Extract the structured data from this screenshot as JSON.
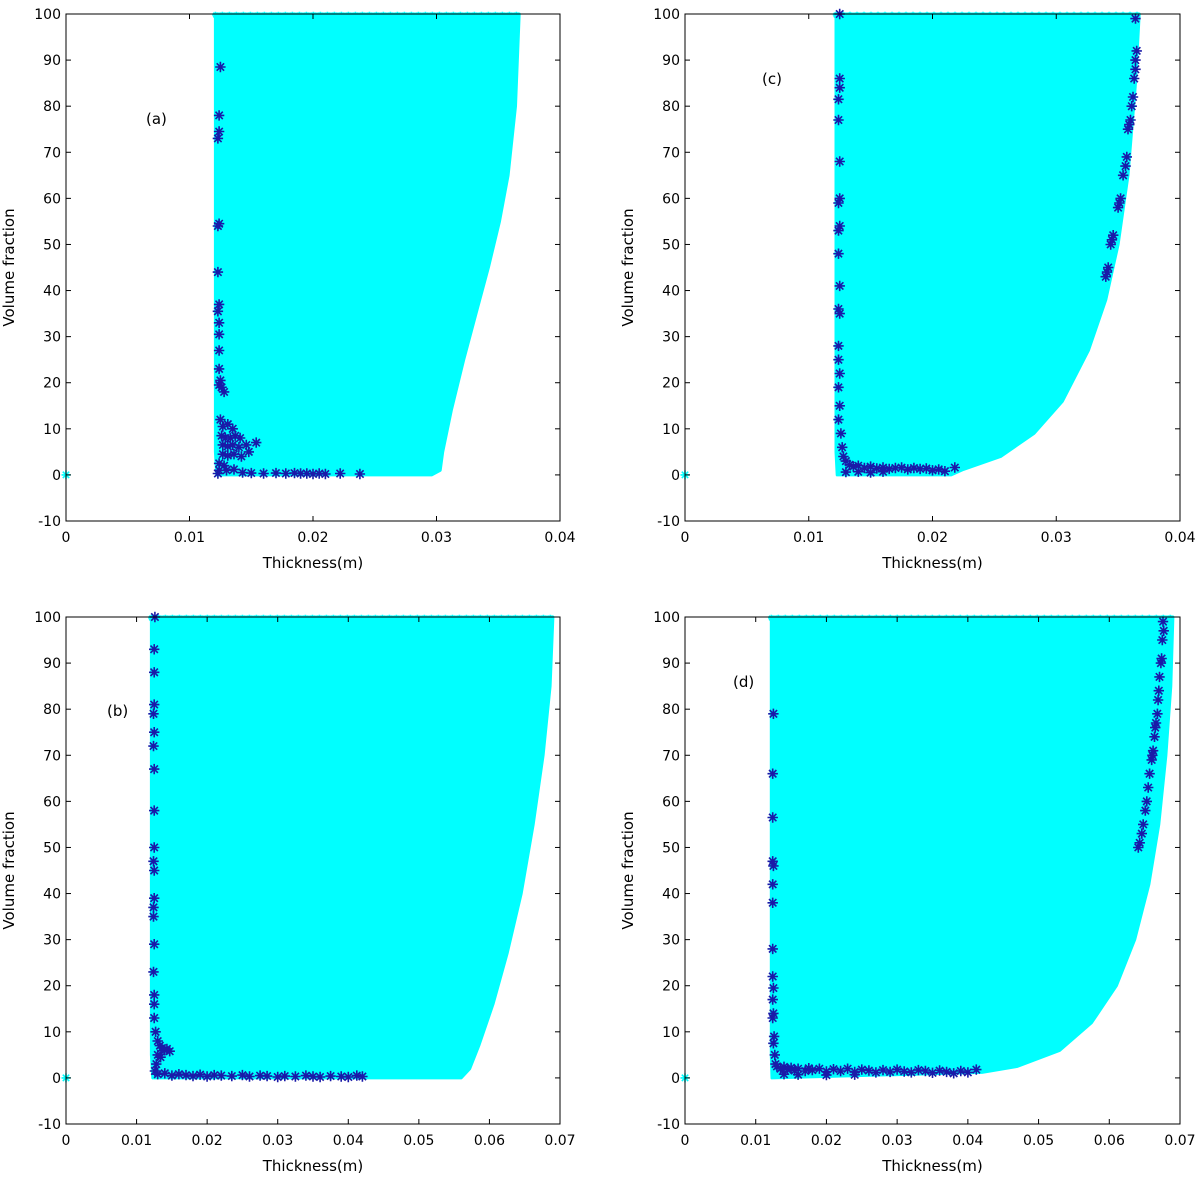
{
  "colors": {
    "region_fill": "#00ffff",
    "pareto_marker": "#1a1aa8",
    "axes": "#000000",
    "background": "#ffffff"
  },
  "chart_data": [
    {
      "panel": "(a)",
      "type": "scatter",
      "xlabel": "Thickness(m)",
      "ylabel": "Volume fraction",
      "xlim": [
        0,
        0.04
      ],
      "ylim": [
        -10,
        100
      ],
      "xticks": [
        0,
        0.01,
        0.02,
        0.03,
        0.04
      ],
      "xtick_labels": [
        "0",
        "0.01",
        "0.02",
        "0.03",
        "0.04"
      ],
      "yticks": [
        -10,
        0,
        10,
        20,
        30,
        40,
        50,
        60,
        70,
        80,
        90,
        100
      ],
      "grid": false,
      "region_boundary": [
        [
          0.0121,
          100
        ],
        [
          0.0367,
          100
        ],
        [
          0.0364,
          80
        ],
        [
          0.0358,
          65
        ],
        [
          0.0351,
          55
        ],
        [
          0.0342,
          45
        ],
        [
          0.0332,
          35
        ],
        [
          0.0322,
          25
        ],
        [
          0.0312,
          14
        ],
        [
          0.0305,
          5
        ],
        [
          0.0303,
          1
        ],
        [
          0.0296,
          0
        ],
        [
          0.0122,
          0
        ],
        [
          0.0121,
          5
        ]
      ],
      "region_points": [
        [
          0.0,
          0.0
        ]
      ],
      "pareto_points": [
        [
          0.0125,
          88.5
        ],
        [
          0.0124,
          78
        ],
        [
          0.0124,
          74.5
        ],
        [
          0.0123,
          73
        ],
        [
          0.0124,
          54.5
        ],
        [
          0.0123,
          54
        ],
        [
          0.0123,
          44
        ],
        [
          0.0124,
          37
        ],
        [
          0.0123,
          35.5
        ],
        [
          0.0124,
          33
        ],
        [
          0.0124,
          30.5
        ],
        [
          0.0124,
          27
        ],
        [
          0.0124,
          23
        ],
        [
          0.0125,
          20.5
        ],
        [
          0.0124,
          19.5
        ],
        [
          0.0126,
          19
        ],
        [
          0.0128,
          18
        ],
        [
          0.0125,
          12
        ],
        [
          0.0127,
          10.5
        ],
        [
          0.0131,
          11
        ],
        [
          0.0135,
          10
        ],
        [
          0.0126,
          8.5
        ],
        [
          0.0129,
          8
        ],
        [
          0.0133,
          8
        ],
        [
          0.0137,
          8.5
        ],
        [
          0.0141,
          8
        ],
        [
          0.0127,
          6.5
        ],
        [
          0.0131,
          6.2
        ],
        [
          0.0135,
          6.5
        ],
        [
          0.014,
          6
        ],
        [
          0.0146,
          6.5
        ],
        [
          0.0154,
          7
        ],
        [
          0.0127,
          4.5
        ],
        [
          0.0131,
          4.2
        ],
        [
          0.0136,
          4.5
        ],
        [
          0.0142,
          4
        ],
        [
          0.0148,
          5
        ],
        [
          0.0124,
          2.5
        ],
        [
          0.0128,
          2
        ],
        [
          0.0124,
          1
        ],
        [
          0.013,
          1
        ],
        [
          0.0136,
          1.2
        ],
        [
          0.0123,
          0.3
        ],
        [
          0.0143,
          0.5
        ],
        [
          0.015,
          0.4
        ],
        [
          0.016,
          0.3
        ],
        [
          0.017,
          0.4
        ],
        [
          0.0178,
          0.3
        ],
        [
          0.0185,
          0.4
        ],
        [
          0.019,
          0.3
        ],
        [
          0.0195,
          0.3
        ],
        [
          0.02,
          0.2
        ],
        [
          0.0205,
          0.3
        ],
        [
          0.021,
          0.2
        ],
        [
          0.0222,
          0.3
        ],
        [
          0.0238,
          0.2
        ]
      ]
    },
    {
      "panel": "(c)",
      "type": "scatter",
      "xlabel": "Thickness(m)",
      "ylabel": "Volume fraction",
      "xlim": [
        0,
        0.04
      ],
      "ylim": [
        -10,
        100
      ],
      "xticks": [
        0,
        0.01,
        0.02,
        0.03,
        0.04
      ],
      "xtick_labels": [
        "0",
        "0.01",
        "0.02",
        "0.03",
        "0.04"
      ],
      "yticks": [
        -10,
        0,
        10,
        20,
        30,
        40,
        50,
        60,
        70,
        80,
        90,
        100
      ],
      "grid": false,
      "region_boundary": [
        [
          0.0122,
          100
        ],
        [
          0.0367,
          100
        ],
        [
          0.0364,
          85
        ],
        [
          0.0358,
          65
        ],
        [
          0.035,
          50
        ],
        [
          0.034,
          38
        ],
        [
          0.0326,
          27
        ],
        [
          0.0305,
          16
        ],
        [
          0.0282,
          9
        ],
        [
          0.0255,
          4
        ],
        [
          0.0225,
          1.2
        ],
        [
          0.0215,
          0
        ],
        [
          0.0123,
          0
        ],
        [
          0.0122,
          5
        ]
      ],
      "region_points": [
        [
          0.0,
          0.0
        ]
      ],
      "pareto_points": [
        [
          0.0125,
          100
        ],
        [
          0.0125,
          86
        ],
        [
          0.0125,
          84
        ],
        [
          0.0124,
          81.5
        ],
        [
          0.0124,
          77
        ],
        [
          0.0125,
          68
        ],
        [
          0.0125,
          60
        ],
        [
          0.0124,
          59
        ],
        [
          0.0125,
          54
        ],
        [
          0.0124,
          53
        ],
        [
          0.0124,
          48
        ],
        [
          0.0125,
          41
        ],
        [
          0.0124,
          36
        ],
        [
          0.0125,
          35
        ],
        [
          0.0124,
          28
        ],
        [
          0.0124,
          25
        ],
        [
          0.0125,
          22
        ],
        [
          0.0124,
          19
        ],
        [
          0.0125,
          15
        ],
        [
          0.0124,
          12
        ],
        [
          0.0126,
          9
        ],
        [
          0.0127,
          6
        ],
        [
          0.0128,
          4
        ],
        [
          0.013,
          3
        ],
        [
          0.0133,
          2.2
        ],
        [
          0.0136,
          1.8
        ],
        [
          0.014,
          2
        ],
        [
          0.0145,
          1.5
        ],
        [
          0.015,
          1.8
        ],
        [
          0.0155,
          1.4
        ],
        [
          0.016,
          1.6
        ],
        [
          0.0165,
          1.3
        ],
        [
          0.017,
          1.5
        ],
        [
          0.0175,
          1.6
        ],
        [
          0.018,
          1.2
        ],
        [
          0.0185,
          1.5
        ],
        [
          0.019,
          1.3
        ],
        [
          0.0195,
          1.4
        ],
        [
          0.02,
          1.0
        ],
        [
          0.0205,
          1.2
        ],
        [
          0.021,
          0.8
        ],
        [
          0.0218,
          1.6
        ],
        [
          0.013,
          0.6
        ],
        [
          0.014,
          0.7
        ],
        [
          0.015,
          0.5
        ],
        [
          0.016,
          0.7
        ],
        [
          0.0364,
          99
        ],
        [
          0.0365,
          92
        ],
        [
          0.0364,
          90
        ],
        [
          0.0364,
          88
        ],
        [
          0.0363,
          86
        ],
        [
          0.0362,
          82
        ],
        [
          0.0361,
          80
        ],
        [
          0.036,
          77
        ],
        [
          0.0359,
          76
        ],
        [
          0.0358,
          75
        ],
        [
          0.0357,
          69
        ],
        [
          0.0356,
          67
        ],
        [
          0.0354,
          65
        ],
        [
          0.0352,
          60
        ],
        [
          0.0351,
          59
        ],
        [
          0.035,
          58
        ],
        [
          0.0346,
          52
        ],
        [
          0.0345,
          51
        ],
        [
          0.0344,
          50
        ],
        [
          0.0342,
          45
        ],
        [
          0.0341,
          44
        ],
        [
          0.034,
          43
        ]
      ]
    },
    {
      "panel": "(b)",
      "type": "scatter",
      "xlabel": "Thickness(m)",
      "ylabel": "Volume fraction",
      "xlim": [
        0,
        0.07
      ],
      "ylim": [
        -10,
        100
      ],
      "xticks": [
        0,
        0.01,
        0.02,
        0.03,
        0.04,
        0.05,
        0.06,
        0.07
      ],
      "xtick_labels": [
        "0",
        "0.01",
        "0.02",
        "0.03",
        "0.04",
        "0.05",
        "0.06",
        "0.07"
      ],
      "yticks": [
        -10,
        0,
        10,
        20,
        30,
        40,
        50,
        60,
        70,
        80,
        90,
        100
      ],
      "grid": false,
      "region_boundary": [
        [
          0.0121,
          100
        ],
        [
          0.069,
          100
        ],
        [
          0.0686,
          85
        ],
        [
          0.0676,
          70
        ],
        [
          0.0662,
          55
        ],
        [
          0.0645,
          40
        ],
        [
          0.0625,
          27
        ],
        [
          0.0605,
          16
        ],
        [
          0.0585,
          7
        ],
        [
          0.0572,
          2
        ],
        [
          0.056,
          0
        ],
        [
          0.0123,
          0
        ],
        [
          0.0121,
          5
        ]
      ],
      "region_points": [
        [
          0.0,
          0.0
        ]
      ],
      "pareto_points": [
        [
          0.0126,
          100
        ],
        [
          0.0125,
          93
        ],
        [
          0.0125,
          88
        ],
        [
          0.0125,
          81
        ],
        [
          0.0124,
          79
        ],
        [
          0.0125,
          75
        ],
        [
          0.0124,
          72
        ],
        [
          0.0125,
          67
        ],
        [
          0.0125,
          58
        ],
        [
          0.0125,
          50
        ],
        [
          0.0124,
          47
        ],
        [
          0.0125,
          45
        ],
        [
          0.0125,
          39
        ],
        [
          0.0124,
          37
        ],
        [
          0.0124,
          35
        ],
        [
          0.0125,
          29
        ],
        [
          0.0124,
          23
        ],
        [
          0.0125,
          18
        ],
        [
          0.0125,
          16
        ],
        [
          0.0125,
          13
        ],
        [
          0.0127,
          10
        ],
        [
          0.013,
          8
        ],
        [
          0.0133,
          7
        ],
        [
          0.0136,
          6.5
        ],
        [
          0.014,
          6
        ],
        [
          0.0143,
          6.3
        ],
        [
          0.0147,
          5.8
        ],
        [
          0.013,
          5
        ],
        [
          0.0134,
          4.5
        ],
        [
          0.0128,
          3
        ],
        [
          0.0126,
          1.5
        ],
        [
          0.013,
          0.8
        ],
        [
          0.014,
          1
        ],
        [
          0.015,
          0.5
        ],
        [
          0.016,
          0.8
        ],
        [
          0.017,
          0.6
        ],
        [
          0.018,
          0.4
        ],
        [
          0.019,
          0.7
        ],
        [
          0.02,
          0.3
        ],
        [
          0.021,
          0.6
        ],
        [
          0.022,
          0.5
        ],
        [
          0.0235,
          0.4
        ],
        [
          0.025,
          0.6
        ],
        [
          0.026,
          0.3
        ],
        [
          0.0275,
          0.5
        ],
        [
          0.0285,
          0.4
        ],
        [
          0.03,
          0.2
        ],
        [
          0.031,
          0.4
        ],
        [
          0.0325,
          0.3
        ],
        [
          0.034,
          0.5
        ],
        [
          0.035,
          0.3
        ],
        [
          0.036,
          0.2
        ],
        [
          0.0375,
          0.4
        ],
        [
          0.039,
          0.3
        ],
        [
          0.04,
          0.2
        ],
        [
          0.0412,
          0.5
        ],
        [
          0.042,
          0.3
        ]
      ]
    },
    {
      "panel": "(d)",
      "type": "scatter",
      "xlabel": "Thickness(m)",
      "ylabel": "Volume fraction",
      "xlim": [
        0,
        0.07
      ],
      "ylim": [
        -10,
        100
      ],
      "xticks": [
        0,
        0.01,
        0.02,
        0.03,
        0.04,
        0.05,
        0.06,
        0.07
      ],
      "xtick_labels": [
        "0",
        "0.01",
        "0.02",
        "0.03",
        "0.04",
        "0.05",
        "0.06",
        "0.07"
      ],
      "yticks": [
        -10,
        0,
        10,
        20,
        30,
        40,
        50,
        60,
        70,
        80,
        90,
        100
      ],
      "grid": false,
      "region_boundary": [
        [
          0.0122,
          100
        ],
        [
          0.069,
          100
        ],
        [
          0.0687,
          85
        ],
        [
          0.068,
          70
        ],
        [
          0.067,
          55
        ],
        [
          0.0656,
          42
        ],
        [
          0.0636,
          30
        ],
        [
          0.061,
          20
        ],
        [
          0.0575,
          12
        ],
        [
          0.053,
          6
        ],
        [
          0.047,
          2.5
        ],
        [
          0.042,
          1.2
        ],
        [
          0.0123,
          0
        ],
        [
          0.0122,
          5
        ]
      ],
      "region_points": [
        [
          0.0,
          0.0
        ]
      ],
      "pareto_points": [
        [
          0.0125,
          79
        ],
        [
          0.0124,
          66
        ],
        [
          0.0124,
          56.5
        ],
        [
          0.0124,
          47
        ],
        [
          0.0125,
          46
        ],
        [
          0.0124,
          42
        ],
        [
          0.0124,
          38
        ],
        [
          0.0124,
          28
        ],
        [
          0.0124,
          22
        ],
        [
          0.0125,
          19.5
        ],
        [
          0.0124,
          17
        ],
        [
          0.0125,
          14
        ],
        [
          0.0124,
          13
        ],
        [
          0.0126,
          9
        ],
        [
          0.0125,
          7.5
        ],
        [
          0.0127,
          5
        ],
        [
          0.0128,
          3
        ],
        [
          0.013,
          2.5
        ],
        [
          0.0135,
          2
        ],
        [
          0.014,
          2.4
        ],
        [
          0.0145,
          1.8
        ],
        [
          0.015,
          2.2
        ],
        [
          0.0155,
          1.6
        ],
        [
          0.016,
          2.0
        ],
        [
          0.017,
          1.5
        ],
        [
          0.0175,
          2.1
        ],
        [
          0.018,
          1.7
        ],
        [
          0.019,
          2.0
        ],
        [
          0.02,
          1.4
        ],
        [
          0.021,
          1.9
        ],
        [
          0.022,
          1.5
        ],
        [
          0.023,
          2.0
        ],
        [
          0.024,
          1.3
        ],
        [
          0.025,
          1.8
        ],
        [
          0.026,
          1.6
        ],
        [
          0.027,
          1.2
        ],
        [
          0.028,
          1.7
        ],
        [
          0.029,
          1.3
        ],
        [
          0.03,
          1.8
        ],
        [
          0.031,
          1.4
        ],
        [
          0.032,
          1.2
        ],
        [
          0.033,
          1.7
        ],
        [
          0.034,
          1.5
        ],
        [
          0.035,
          1.1
        ],
        [
          0.036,
          1.6
        ],
        [
          0.037,
          1.3
        ],
        [
          0.038,
          1.0
        ],
        [
          0.039,
          1.5
        ],
        [
          0.04,
          1.2
        ],
        [
          0.0412,
          1.8
        ],
        [
          0.014,
          0.8
        ],
        [
          0.016,
          0.7
        ],
        [
          0.02,
          0.6
        ],
        [
          0.024,
          0.7
        ],
        [
          0.0676,
          99
        ],
        [
          0.0677,
          97
        ],
        [
          0.0675,
          95
        ],
        [
          0.0674,
          91
        ],
        [
          0.0673,
          90
        ],
        [
          0.0671,
          87
        ],
        [
          0.067,
          84
        ],
        [
          0.0669,
          82
        ],
        [
          0.0668,
          79
        ],
        [
          0.0666,
          77
        ],
        [
          0.0665,
          76
        ],
        [
          0.0664,
          74
        ],
        [
          0.0662,
          71
        ],
        [
          0.0661,
          70
        ],
        [
          0.066,
          69
        ],
        [
          0.0657,
          66
        ],
        [
          0.0655,
          63
        ],
        [
          0.0653,
          60
        ],
        [
          0.0651,
          58
        ],
        [
          0.0648,
          55
        ],
        [
          0.0646,
          53
        ],
        [
          0.0643,
          51
        ],
        [
          0.0641,
          50
        ]
      ]
    }
  ]
}
